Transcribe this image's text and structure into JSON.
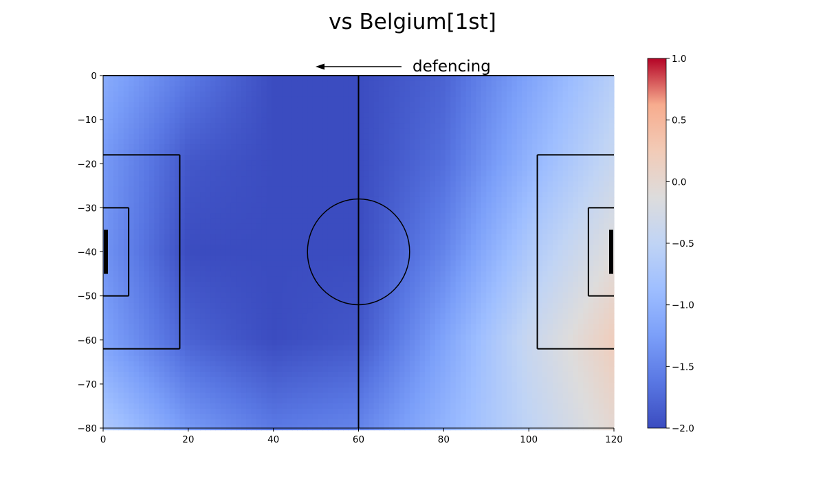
{
  "chart_data": {
    "type": "heatmap",
    "title": "vs Belgium[1st]",
    "annotation": "defencing",
    "colormap": "coolwarm",
    "x_ticks": [
      "0",
      "20",
      "40",
      "60",
      "80",
      "100",
      "120"
    ],
    "y_ticks": [
      "0",
      "−10",
      "−20",
      "−30",
      "−40",
      "−50",
      "−60",
      "−70",
      "−80"
    ],
    "xlim": [
      0,
      120
    ],
    "ylim": [
      -80,
      0
    ],
    "colorbar": {
      "min": -2.0,
      "max": 1.0,
      "ticks": [
        "1.0",
        "0.5",
        "0.0",
        "−0.5",
        "−1.0",
        "−1.5",
        "−2.0"
      ]
    },
    "field_values": {
      "description_x": [
        0,
        20,
        40,
        60,
        80,
        100,
        120
      ],
      "description_y": [
        0,
        -20,
        -40,
        -60,
        -80
      ],
      "z": [
        [
          -1.1,
          -1.6,
          -2.0,
          -2.0,
          -1.8,
          -1.2,
          -0.6
        ],
        [
          -1.3,
          -1.9,
          -2.0,
          -2.0,
          -1.7,
          -1.0,
          -0.4
        ],
        [
          -1.35,
          -2.0,
          -2.0,
          -2.0,
          -1.5,
          -0.7,
          -0.1
        ],
        [
          -1.2,
          -1.8,
          -2.0,
          -1.9,
          -1.2,
          -0.4,
          0.2
        ],
        [
          -0.7,
          -1.3,
          -1.6,
          -1.5,
          -1.0,
          -0.5,
          0.0
        ]
      ]
    }
  }
}
